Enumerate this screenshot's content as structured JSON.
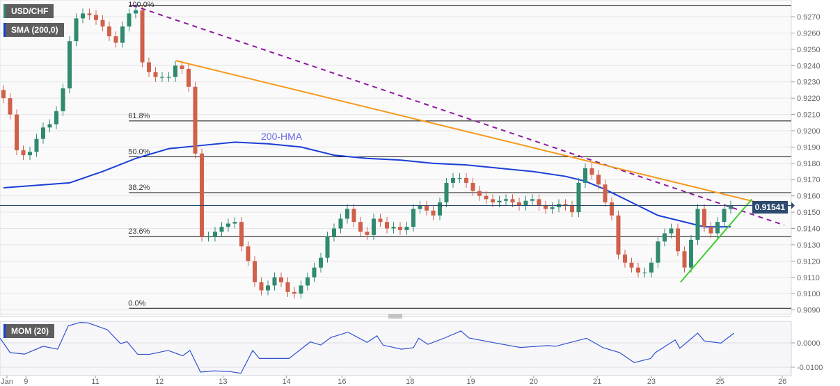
{
  "chart_data": {
    "type": "candlestick",
    "symbol": "USD/CHF",
    "indicator_label": "SMA (200,0)",
    "hma_label": "200-HMA",
    "oscillator_label": "MOM (20)",
    "last_price": "0.91541",
    "colors": {
      "up": "#2f8a6f",
      "down": "#d0604a",
      "hma": "#1a3fd6",
      "mom": "#3050d0",
      "trend_down_dashed": "#8e1a9e",
      "trend_orange": "#f59a1c",
      "trend_green": "#3ccf2a",
      "price_tag": "#2c4a6e"
    },
    "y_ticks": [
      "0.9270",
      "0.9260",
      "0.9250",
      "0.9240",
      "0.9230",
      "0.9220",
      "0.9210",
      "0.9200",
      "0.9190",
      "0.9180",
      "0.9170",
      "0.9160",
      "0.9150",
      "0.9140",
      "0.9130",
      "0.9120",
      "0.9110",
      "0.9100",
      "0.9090"
    ],
    "ylim": [
      0.9086,
      0.9282
    ],
    "x_ticks": [
      {
        "label": "Jan",
        "bar": 0.3
      },
      {
        "label": "9",
        "bar": 3.4
      },
      {
        "label": "11",
        "bar": 13.9
      },
      {
        "label": "12",
        "bar": 23.6
      },
      {
        "label": "13",
        "bar": 33.2
      },
      {
        "label": "14",
        "bar": 42.8
      },
      {
        "label": "16",
        "bar": 51.2
      },
      {
        "label": "18",
        "bar": 61.5
      },
      {
        "label": "19",
        "bar": 70.7
      },
      {
        "label": "20",
        "bar": 80.2
      },
      {
        "label": "21",
        "bar": 89.8
      },
      {
        "label": "23",
        "bar": 98
      },
      {
        "label": "25",
        "bar": 108.4
      },
      {
        "label": "26",
        "bar": 117.8
      }
    ],
    "closes": [
      0.922,
      0.921,
      0.9188,
      0.9185,
      0.9187,
      0.9195,
      0.9202,
      0.9204,
      0.9212,
      0.9226,
      0.9255,
      0.9269,
      0.9272,
      0.9271,
      0.9268,
      0.9264,
      0.9258,
      0.9254,
      0.9264,
      0.9272,
      0.9274,
      0.9242,
      0.9236,
      0.9233,
      0.9233,
      0.9233,
      0.924,
      0.9238,
      0.9227,
      0.9186,
      0.9135,
      0.9135,
      0.9138,
      0.9141,
      0.9143,
      0.9144,
      0.9129,
      0.912,
      0.9107,
      0.9102,
      0.9105,
      0.911,
      0.9107,
      0.9101,
      0.91,
      0.9105,
      0.911,
      0.9116,
      0.9122,
      0.9135,
      0.914,
      0.9146,
      0.9152,
      0.9144,
      0.9138,
      0.9136,
      0.9146,
      0.9144,
      0.914,
      0.9141,
      0.9139,
      0.9141,
      0.9152,
      0.9154,
      0.9151,
      0.9148,
      0.9156,
      0.9168,
      0.9171,
      0.9171,
      0.9168,
      0.9163,
      0.916,
      0.9158,
      0.9156,
      0.9157,
      0.9158,
      0.9156,
      0.9154,
      0.9157,
      0.9158,
      0.9154,
      0.9152,
      0.9153,
      0.9155,
      0.9154,
      0.915,
      0.9168,
      0.9177,
      0.9173,
      0.9167,
      0.9156,
      0.9148,
      0.9124,
      0.9119,
      0.9116,
      0.9113,
      0.9113,
      0.9119,
      0.9132,
      0.9137,
      0.914,
      0.9126,
      0.9116,
      0.9133,
      0.9152,
      0.9141,
      0.9137,
      0.9144,
      0.9152,
      0.91541
    ],
    "hma_200": [
      [
        0,
        0.9165
      ],
      [
        10,
        0.9168
      ],
      [
        15,
        0.9175
      ],
      [
        20,
        0.9183
      ],
      [
        25,
        0.9189
      ],
      [
        30,
        0.9191
      ],
      [
        35,
        0.9193
      ],
      [
        40,
        0.9192
      ],
      [
        45,
        0.919
      ],
      [
        50,
        0.9185
      ],
      [
        55,
        0.9183
      ],
      [
        60,
        0.9182
      ],
      [
        65,
        0.918
      ],
      [
        70,
        0.9179
      ],
      [
        75,
        0.9177
      ],
      [
        80,
        0.9175
      ],
      [
        85,
        0.9172
      ],
      [
        88,
        0.9169
      ],
      [
        91,
        0.9164
      ],
      [
        95,
        0.9156
      ],
      [
        99,
        0.9148
      ],
      [
        103,
        0.9144
      ],
      [
        106,
        0.9141
      ],
      [
        110,
        0.9141
      ]
    ],
    "fibonacci": [
      {
        "label": "100.0%",
        "price": 0.9277
      },
      {
        "label": "61.8%",
        "price": 0.9206
      },
      {
        "label": "50.0%",
        "price": 0.9184
      },
      {
        "label": "38.2%",
        "price": 0.9162
      },
      {
        "label": "23.6%",
        "price": 0.9135
      },
      {
        "label": "0.0%",
        "price": 0.9091
      }
    ],
    "fib_start_bar": 19.5,
    "trendlines": [
      {
        "style": "dashed",
        "color": "#8e1a9e",
        "from": [
          19.5,
          0.9277
        ],
        "to": [
          118.1,
          0.9142
        ]
      },
      {
        "style": "solid",
        "color": "#f59a1c",
        "from": [
          26.1,
          0.9243
        ],
        "to": [
          118.1,
          0.9152
        ]
      },
      {
        "style": "solid",
        "color": "#3ccf2a",
        "from": [
          102.4,
          0.9107
        ],
        "to": [
          113.2,
          0.9158
        ]
      }
    ],
    "mom": {
      "y_ticks": [
        "0.0000",
        "-0.0100"
      ],
      "ylim": [
        -0.0128,
        0.0095
      ],
      "values": [
        [
          -0.5,
          0.0019
        ],
        [
          1,
          -0.004
        ],
        [
          3.2,
          -0.0046
        ],
        [
          6,
          -0.0014
        ],
        [
          8.2,
          -0.0026
        ],
        [
          9.8,
          0.007
        ],
        [
          11.6,
          0.0084
        ],
        [
          12.8,
          0.0082
        ],
        [
          15.7,
          0.0054
        ],
        [
          17.7,
          -0.0003
        ],
        [
          18.7,
          0.0005
        ],
        [
          20.3,
          -0.0047
        ],
        [
          22.1,
          -0.0047
        ],
        [
          24.9,
          -0.0031
        ],
        [
          27.1,
          -0.0053
        ],
        [
          28.2,
          -0.0031
        ],
        [
          29.8,
          -0.012
        ],
        [
          31.9,
          -0.0115
        ],
        [
          34.3,
          -0.0118
        ],
        [
          35.9,
          -0.0125
        ],
        [
          37.7,
          -0.0031
        ],
        [
          38.7,
          -0.0064
        ],
        [
          43.2,
          -0.0064
        ],
        [
          46.4,
          0.0004
        ],
        [
          48,
          -0.0009
        ],
        [
          49.5,
          0.0022
        ],
        [
          52.1,
          0.0044
        ],
        [
          55,
          0.0002
        ],
        [
          56.5,
          0.0029
        ],
        [
          57.4,
          -0.0009
        ],
        [
          60.2,
          -0.0026
        ],
        [
          62,
          -0.002
        ],
        [
          62.8,
          0.0019
        ],
        [
          64.2,
          -0.0006
        ],
        [
          66.7,
          0.002
        ],
        [
          69.2,
          0.0049
        ],
        [
          70.4,
          0.002
        ],
        [
          74.9,
          -0.0003
        ],
        [
          78.2,
          -0.0019
        ],
        [
          82.3,
          -0.0011
        ],
        [
          83.5,
          -0.0014
        ],
        [
          88.2,
          0.0019
        ],
        [
          90.7,
          -0.002
        ],
        [
          93.2,
          -0.004
        ],
        [
          95.4,
          -0.0081
        ],
        [
          97.9,
          -0.0064
        ],
        [
          98.6,
          -0.004
        ],
        [
          101.6,
          0.0012
        ],
        [
          102.3,
          -0.0022
        ],
        [
          105,
          0.004
        ],
        [
          106,
          0.0008
        ],
        [
          108.5,
          -0.0001
        ],
        [
          110.5,
          0.004
        ]
      ]
    }
  }
}
